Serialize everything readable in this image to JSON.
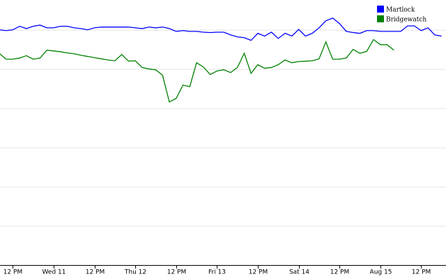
{
  "chart_data": {
    "type": "line",
    "x": [
      -16,
      -14,
      -12,
      -10,
      -8,
      -6,
      -4,
      -2,
      0,
      2,
      4,
      6,
      8,
      10,
      12,
      14,
      16,
      18,
      20,
      22,
      24,
      26,
      28,
      30,
      32,
      34,
      36,
      38,
      40,
      42,
      44,
      46,
      48,
      50,
      52,
      54,
      56,
      58,
      60,
      62,
      64,
      66,
      68,
      70,
      72,
      74,
      76,
      78,
      80,
      82,
      84,
      86,
      88,
      90,
      92,
      94,
      96,
      98,
      100,
      102,
      104,
      106,
      108,
      110,
      112,
      114
    ],
    "series": [
      {
        "name": "Martlock",
        "color": "#0000ff",
        "values": [
          6.0,
          5.98,
          6.0,
          6.09,
          6.03,
          6.09,
          6.12,
          6.05,
          6.05,
          6.09,
          6.09,
          6.05,
          6.03,
          6.0,
          6.05,
          6.07,
          6.07,
          6.07,
          6.07,
          6.07,
          6.05,
          6.03,
          6.07,
          6.05,
          6.07,
          6.03,
          5.96,
          5.98,
          5.96,
          5.96,
          5.94,
          5.93,
          5.94,
          5.94,
          5.87,
          5.82,
          5.8,
          5.73,
          5.91,
          5.84,
          5.94,
          5.78,
          5.91,
          5.84,
          6.01,
          5.84,
          5.91,
          6.05,
          6.23,
          6.3,
          6.16,
          5.96,
          5.93,
          5.91,
          5.98,
          5.98,
          5.96,
          5.96,
          5.96,
          5.96,
          6.1,
          6.1,
          5.98,
          6.05,
          5.87,
          5.84
        ]
      },
      {
        "name": "Bridgewatch",
        "color": "#008000",
        "values": [
          5.4,
          5.25,
          5.25,
          5.28,
          5.34,
          5.25,
          5.28,
          5.48,
          5.46,
          5.44,
          5.41,
          5.39,
          5.35,
          5.32,
          5.29,
          5.26,
          5.23,
          5.21,
          5.37,
          5.2,
          5.21,
          5.04,
          5.0,
          4.98,
          4.84,
          4.16,
          4.25,
          4.59,
          4.55,
          5.16,
          5.05,
          4.86,
          4.95,
          4.98,
          4.91,
          5.04,
          5.4,
          4.89,
          5.11,
          5.02,
          5.04,
          5.11,
          5.23,
          5.16,
          5.19,
          5.2,
          5.21,
          5.26,
          5.69,
          5.25,
          5.25,
          5.28,
          5.5,
          5.4,
          5.45,
          5.75,
          5.62,
          5.62,
          5.48,
          null,
          null,
          null,
          null,
          null,
          null,
          null
        ]
      }
    ],
    "xlim": [
      -15.77,
      115.3
    ],
    "xticks": [
      {
        "value": -12,
        "label": "12 PM"
      },
      {
        "value": 0,
        "label": "Wed 11"
      },
      {
        "value": 12,
        "label": "12 PM"
      },
      {
        "value": 24,
        "label": "Thu 12"
      },
      {
        "value": 36,
        "label": "12 PM"
      },
      {
        "value": 48,
        "label": "Fri 13"
      },
      {
        "value": 60,
        "label": "12 PM"
      },
      {
        "value": 72,
        "label": "Sat 14"
      },
      {
        "value": 84,
        "label": "12 PM"
      },
      {
        "value": 96,
        "label": "Aug 15"
      },
      {
        "value": 108,
        "label": "12 PM"
      }
    ],
    "ylim": [
      0,
      6.76
    ],
    "yticks": [
      0,
      1,
      2,
      3,
      4,
      5,
      6
    ],
    "grid": true,
    "legend": "upper right"
  }
}
